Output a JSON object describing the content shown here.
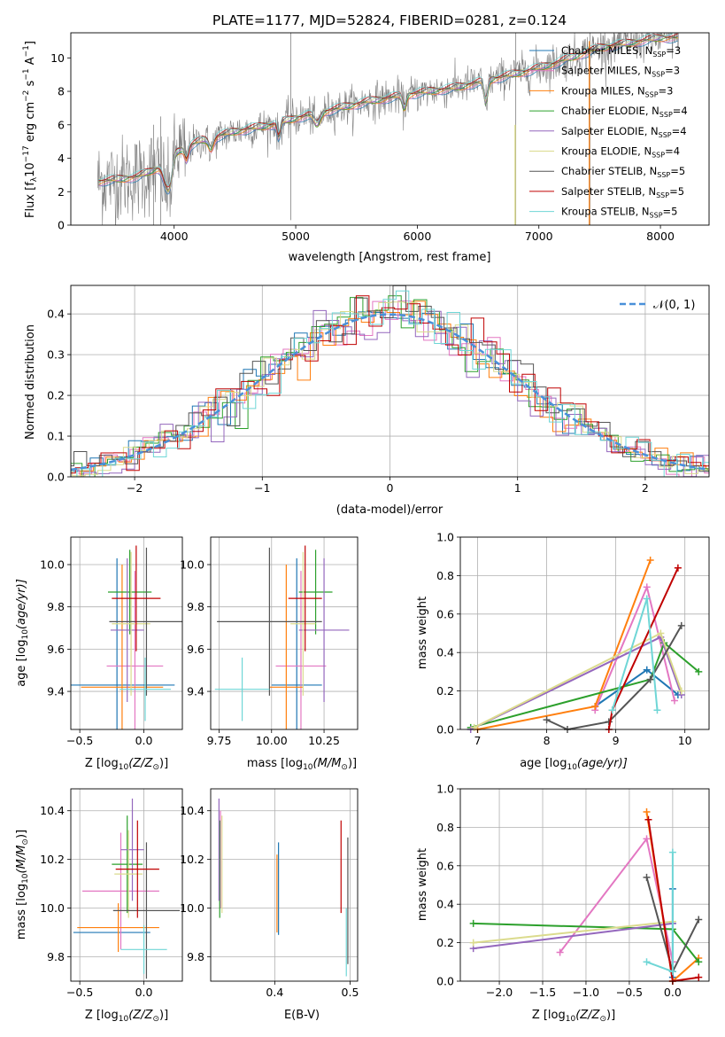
{
  "figure": {
    "title": "PLATE=1177, MJD=52824, FIBERID=0281, z=0.124"
  },
  "models": [
    {
      "label": "Chabrier MILES",
      "nssp": "3",
      "color": "#1f77b4"
    },
    {
      "label": "Salpeter MILES",
      "nssp": "3",
      "color": "#e377c2"
    },
    {
      "label": "Kroupa MILES",
      "nssp": "3",
      "color": "#ff7f0e"
    },
    {
      "label": "Chabrier ELODIE",
      "nssp": "4",
      "color": "#2ca02c"
    },
    {
      "label": "Salpeter ELODIE",
      "nssp": "4",
      "color": "#9467bd"
    },
    {
      "label": "Kroupa ELODIE",
      "nssp": "4",
      "color": "#dbdb8d"
    },
    {
      "label": "Chabrier STELIB",
      "nssp": "5",
      "color": "#555555"
    },
    {
      "label": "Salpeter STELIB",
      "nssp": "5",
      "color": "#c00000"
    },
    {
      "label": "Kroupa STELIB",
      "nssp": "5",
      "color": "#6fd6d6"
    }
  ],
  "chart_data": [
    {
      "id": "spectrum",
      "type": "line",
      "xlabel": "wavelength [Angstrom, rest frame]",
      "ylabel_main": "Flux [f",
      "ylabel_sub": "λ",
      "ylabel_rest": "10",
      "ylabel_sup1": "−17",
      "ylabel_unit": " erg cm",
      "ylabel_sup2": "−2",
      "ylabel_unit2": " s",
      "ylabel_sup3": "−1",
      "ylabel_unit3": " A",
      "ylabel_sup4": "−1",
      "ylabel_end": "]",
      "xlim": [
        3150,
        8400
      ],
      "ylim": [
        0,
        11.5
      ],
      "xticks": [
        4000,
        5000,
        6000,
        7000,
        8000
      ],
      "yticks": [
        0,
        2,
        4,
        6,
        8,
        10
      ],
      "grid": false,
      "data_color": "#808080",
      "continuum": {
        "x": [
          3350,
          3500,
          3700,
          3900,
          4000,
          4200,
          4500,
          4800,
          5000,
          5300,
          5600,
          6000,
          6300,
          6600,
          6900,
          7100,
          7300,
          7500,
          8000
        ],
        "y": [
          2.6,
          2.7,
          2.9,
          3.5,
          4.3,
          5.0,
          5.6,
          6.0,
          6.4,
          6.9,
          7.4,
          7.9,
          8.2,
          8.7,
          9.2,
          9.6,
          10.1,
          10.6,
          11.2
        ]
      },
      "legend_position": "upper right"
    },
    {
      "id": "residuals",
      "type": "histogram",
      "xlabel": "(data-model)/error",
      "ylabel": "Normed distribution",
      "xlim": [
        -2.5,
        2.5
      ],
      "ylim": [
        0,
        0.47
      ],
      "xticks": [
        -2,
        -1,
        0,
        1,
        2
      ],
      "xtick_labels": [
        "−2",
        "−1",
        "0",
        "1",
        "2"
      ],
      "yticks": [
        0.0,
        0.1,
        0.2,
        0.3,
        0.4
      ],
      "yticks_labels": [
        "0.0",
        "0.1",
        "0.2",
        "0.3",
        "0.4"
      ],
      "grid": true,
      "bin_width": 0.1,
      "legend": {
        "label": "𝒩(0, 1)",
        "color": "#4a90d9",
        "position": "upper right"
      }
    },
    {
      "id": "age_vs_Z",
      "type": "errorbar",
      "xlabel": "Z [log",
      "xlabel_sub": "10",
      "xlabel_end": "(Z/Z",
      "xlabel_sub2": "⊙",
      "xlabel_close": ")]",
      "ylabel": "age  [log",
      "ylabel_sub": "10",
      "ylabel_end": "(age/yr)]",
      "xlim": [
        -0.57,
        0.3
      ],
      "ylim": [
        9.22,
        10.13
      ],
      "xticks": [
        -0.5,
        0.0
      ],
      "xtick_labels": [
        "−0.5",
        "0.0"
      ],
      "yticks": [
        9.4,
        9.6,
        9.8,
        10.0
      ],
      "yticks_labels": [
        "9.4",
        "9.6",
        "9.8",
        "10.0"
      ],
      "grid": true,
      "points": [
        {
          "x": -0.21,
          "xerr": 0.45,
          "y": 9.43,
          "yerr": 0.6,
          "model": 0
        },
        {
          "x": -0.07,
          "xerr": 0.22,
          "y": 9.52,
          "yerr": 0.45,
          "model": 1
        },
        {
          "x": -0.17,
          "xerr": 0.32,
          "y": 9.42,
          "yerr": 0.58,
          "model": 2
        },
        {
          "x": -0.11,
          "xerr": 0.17,
          "y": 9.87,
          "yerr": 0.2,
          "model": 3
        },
        {
          "x": -0.13,
          "xerr": 0.13,
          "y": 9.69,
          "yerr": 0.34,
          "model": 4
        },
        {
          "x": -0.1,
          "xerr": 0.15,
          "y": 9.72,
          "yerr": 0.34,
          "model": 5
        },
        {
          "x": 0.02,
          "xerr": 0.29,
          "y": 9.73,
          "yerr": 0.35,
          "model": 6
        },
        {
          "x": -0.06,
          "xerr": 0.19,
          "y": 9.84,
          "yerr": 0.25,
          "model": 7
        },
        {
          "x": 0.01,
          "xerr": 0.2,
          "y": 9.41,
          "yerr": 0.15,
          "model": 8
        }
      ]
    },
    {
      "id": "age_vs_mass",
      "type": "errorbar",
      "xlabel": "mass [log",
      "xlabel_sub": "10",
      "xlabel_end": "(M/M",
      "xlabel_sub2": "⊙",
      "xlabel_close": ")]",
      "xlim": [
        9.71,
        10.41
      ],
      "ylim": [
        9.22,
        10.13
      ],
      "xticks": [
        9.75,
        10.0,
        10.25
      ],
      "xtick_labels": [
        "9.75",
        "10.00",
        "10.25"
      ],
      "yticks": [
        9.4,
        9.6,
        9.8,
        10.0
      ],
      "yticks_labels": [
        "9.4",
        "9.6",
        "9.8",
        "10.0"
      ],
      "grid": true,
      "points": [
        {
          "x": 10.12,
          "xerr": 0.12,
          "y": 9.43,
          "yerr": 0.6,
          "model": 0
        },
        {
          "x": 10.14,
          "xerr": 0.12,
          "y": 9.52,
          "yerr": 0.45,
          "model": 1
        },
        {
          "x": 10.07,
          "xerr": 0.08,
          "y": 9.42,
          "yerr": 0.58,
          "model": 2
        },
        {
          "x": 10.21,
          "xerr": 0.08,
          "y": 9.87,
          "yerr": 0.2,
          "model": 3
        },
        {
          "x": 10.25,
          "xerr": 0.12,
          "y": 9.69,
          "yerr": 0.34,
          "model": 4
        },
        {
          "x": 10.15,
          "xerr": 0.06,
          "y": 9.72,
          "yerr": 0.34,
          "model": 5
        },
        {
          "x": 9.99,
          "xerr": 0.25,
          "y": 9.73,
          "yerr": 0.35,
          "model": 6
        },
        {
          "x": 10.16,
          "xerr": 0.08,
          "y": 9.84,
          "yerr": 0.25,
          "model": 7
        },
        {
          "x": 9.86,
          "xerr": 0.13,
          "y": 9.41,
          "yerr": 0.15,
          "model": 8
        }
      ]
    },
    {
      "id": "weight_vs_age",
      "type": "line",
      "xlabel": "age  [log",
      "xlabel_sub": "10",
      "xlabel_end": "(age/yr)]",
      "ylabel": "mass weight",
      "xlim": [
        6.75,
        10.35
      ],
      "ylim": [
        0.0,
        1.0
      ],
      "xticks": [
        7,
        8,
        9,
        10
      ],
      "yticks": [
        0.0,
        0.2,
        0.4,
        0.6,
        0.8,
        1.0
      ],
      "yticks_labels": [
        "0.0",
        "0.2",
        "0.4",
        "0.6",
        "0.8",
        "1.0"
      ],
      "grid": true,
      "series": [
        {
          "model": 0,
          "x": [
            8.7,
            9.45,
            9.9
          ],
          "y": [
            0.12,
            0.31,
            0.18
          ]
        },
        {
          "model": 1,
          "x": [
            8.7,
            9.45,
            9.85
          ],
          "y": [
            0.1,
            0.74,
            0.15
          ]
        },
        {
          "model": 2,
          "x": [
            7.0,
            8.7,
            9.5
          ],
          "y": [
            0.0,
            0.12,
            0.88
          ]
        },
        {
          "model": 3,
          "x": [
            6.9,
            9.5,
            9.7,
            10.2
          ],
          "y": [
            0.01,
            0.26,
            0.45,
            0.3
          ]
        },
        {
          "model": 4,
          "x": [
            6.9,
            9.65,
            9.95
          ],
          "y": [
            0.0,
            0.48,
            0.18
          ]
        },
        {
          "model": 5,
          "x": [
            6.95,
            9.65,
            9.95
          ],
          "y": [
            0.01,
            0.5,
            0.2
          ]
        },
        {
          "model": 6,
          "x": [
            8.0,
            8.3,
            8.9,
            9.5,
            9.95
          ],
          "y": [
            0.05,
            0.0,
            0.04,
            0.26,
            0.54
          ]
        },
        {
          "model": 7,
          "x": [
            8.9,
            8.95,
            9.9
          ],
          "y": [
            0.0,
            0.1,
            0.84
          ]
        },
        {
          "model": 8,
          "x": [
            8.95,
            9.45,
            9.6
          ],
          "y": [
            0.1,
            0.68,
            0.1
          ]
        }
      ]
    },
    {
      "id": "mass_vs_Z",
      "type": "errorbar",
      "xlabel": "Z [log",
      "xlabel_sub": "10",
      "xlabel_end": "(Z/Z",
      "xlabel_sub2": "⊙",
      "xlabel_close": ")]",
      "ylabel": "mass [log",
      "ylabel_sub": "10",
      "ylabel_end": "(M/M",
      "ylabel_sub2": "⊙",
      "ylabel_close": ")]",
      "xlim": [
        -0.57,
        0.3
      ],
      "ylim": [
        9.7,
        10.49
      ],
      "xticks": [
        -0.5,
        0.0
      ],
      "xtick_labels": [
        "−0.5",
        "0.0"
      ],
      "yticks": [
        9.8,
        10.0,
        10.2,
        10.4
      ],
      "yticks_labels": [
        "9.8",
        "10.0",
        "10.2",
        "10.4"
      ],
      "grid": true,
      "points": [
        {
          "x": -0.25,
          "xerr": 0.3,
          "y": 9.9,
          "yerr": 0.0,
          "model": 0
        },
        {
          "x": -0.18,
          "xerr": 0.3,
          "y": 10.07,
          "yerr": 0.24,
          "model": 1
        },
        {
          "x": -0.2,
          "xerr": 0.32,
          "y": 9.92,
          "yerr": 0.1,
          "model": 2
        },
        {
          "x": -0.13,
          "xerr": 0.12,
          "y": 10.18,
          "yerr": 0.2,
          "model": 3
        },
        {
          "x": -0.09,
          "xerr": 0.09,
          "y": 10.24,
          "yerr": 0.21,
          "model": 4
        },
        {
          "x": -0.12,
          "xerr": 0.11,
          "y": 10.14,
          "yerr": 0.18,
          "model": 5
        },
        {
          "x": 0.02,
          "xerr": 0.26,
          "y": 9.99,
          "yerr": 0.28,
          "model": 6
        },
        {
          "x": -0.05,
          "xerr": 0.17,
          "y": 10.16,
          "yerr": 0.2,
          "model": 7
        },
        {
          "x": 0.0,
          "xerr": 0.18,
          "y": 9.83,
          "yerr": 0.1,
          "model": 8
        }
      ]
    },
    {
      "id": "mass_vs_ebv",
      "type": "errorbar",
      "xlabel": "E(B-V)",
      "xlim": [
        0.315,
        0.51
      ],
      "ylim": [
        9.7,
        10.49
      ],
      "xticks": [
        0.4,
        0.5
      ],
      "xtick_labels": [
        "0.4",
        "0.5"
      ],
      "yticks": [
        9.8,
        10.0,
        10.2,
        10.4
      ],
      "yticks_labels": [
        "9.8",
        "10.0",
        "10.2",
        "10.4"
      ],
      "grid": true,
      "points": [
        {
          "x": 0.405,
          "xerr": 0.0,
          "y": 10.08,
          "yerr": 0.19,
          "model": 0
        },
        {
          "x": 0.328,
          "xerr": 0.0,
          "y": 10.2,
          "yerr": 0.2,
          "model": 1
        },
        {
          "x": 0.403,
          "xerr": 0.0,
          "y": 10.06,
          "yerr": 0.16,
          "model": 2
        },
        {
          "x": 0.327,
          "xerr": 0.0,
          "y": 10.16,
          "yerr": 0.2,
          "model": 3
        },
        {
          "x": 0.326,
          "xerr": 0.0,
          "y": 10.24,
          "yerr": 0.21,
          "model": 4
        },
        {
          "x": 0.33,
          "xerr": 0.0,
          "y": 10.18,
          "yerr": 0.2,
          "model": 5
        },
        {
          "x": 0.497,
          "xerr": 0.0,
          "y": 10.03,
          "yerr": 0.26,
          "model": 6
        },
        {
          "x": 0.488,
          "xerr": 0.0,
          "y": 10.17,
          "yerr": 0.19,
          "model": 7
        },
        {
          "x": 0.495,
          "xerr": 0.0,
          "y": 9.86,
          "yerr": 0.14,
          "model": 8
        }
      ]
    },
    {
      "id": "weight_vs_Z",
      "type": "line",
      "xlabel": "Z [log",
      "xlabel_sub": "10",
      "xlabel_end": "(Z/Z",
      "xlabel_sub2": "⊙",
      "xlabel_close": ")]",
      "ylabel": "mass weight",
      "xlim": [
        -2.45,
        0.42
      ],
      "ylim": [
        0.0,
        1.0
      ],
      "xticks": [
        -2.0,
        -1.5,
        -1.0,
        -0.5,
        0.0
      ],
      "xtick_labels": [
        "−2.0",
        "−1.5",
        "−1.0",
        "−0.5",
        "0.0"
      ],
      "yticks": [
        0.0,
        0.2,
        0.4,
        0.6,
        0.8,
        1.0
      ],
      "yticks_labels": [
        "0.0",
        "0.2",
        "0.4",
        "0.6",
        "0.8",
        "1.0"
      ],
      "grid": true,
      "series": [
        {
          "model": 0,
          "x": [
            0.0,
            0.0,
            0.0
          ],
          "y": [
            0.02,
            0.3,
            0.48
          ]
        },
        {
          "model": 1,
          "x": [
            -1.3,
            -0.3,
            0.0
          ],
          "y": [
            0.15,
            0.74,
            0.1
          ]
        },
        {
          "model": 2,
          "x": [
            -0.3,
            0.0,
            0.3
          ],
          "y": [
            0.88,
            0.0,
            0.12
          ]
        },
        {
          "model": 3,
          "x": [
            -2.3,
            0.0,
            0.3
          ],
          "y": [
            0.3,
            0.27,
            0.1
          ]
        },
        {
          "model": 4,
          "x": [
            -2.3,
            0.0
          ],
          "y": [
            0.17,
            0.3
          ]
        },
        {
          "model": 5,
          "x": [
            -2.3,
            0.0
          ],
          "y": [
            0.2,
            0.31
          ]
        },
        {
          "model": 6,
          "x": [
            -0.3,
            0.0,
            0.3
          ],
          "y": [
            0.54,
            0.05,
            0.32
          ]
        },
        {
          "model": 7,
          "x": [
            -0.28,
            0.0,
            0.3
          ],
          "y": [
            0.84,
            0.0,
            0.02
          ]
        },
        {
          "model": 8,
          "x": [
            -0.3,
            0.0,
            0.0
          ],
          "y": [
            0.1,
            0.05,
            0.67
          ]
        }
      ]
    }
  ]
}
